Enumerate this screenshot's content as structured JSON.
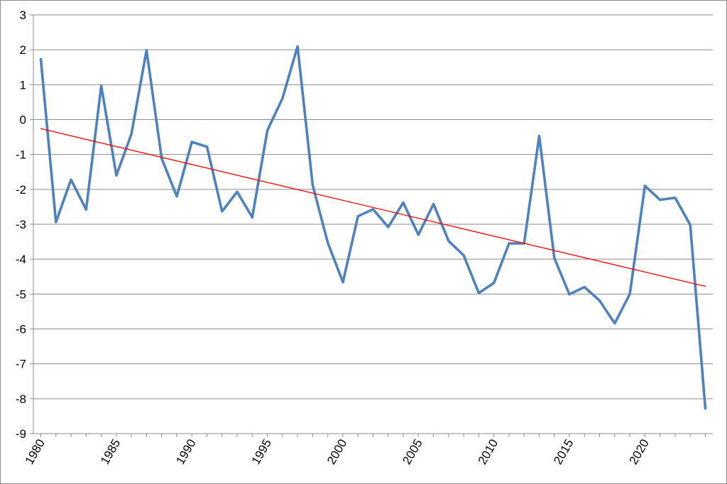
{
  "chart_data": {
    "type": "line",
    "title": "",
    "xlabel": "",
    "ylabel": "",
    "ylim": [
      -9,
      3
    ],
    "yticks": [
      3,
      2,
      1,
      0,
      -1,
      -2,
      -3,
      -4,
      -5,
      -6,
      -7,
      -8,
      -9
    ],
    "xlim": [
      1980,
      2024
    ],
    "xticks": [
      1980,
      1985,
      1990,
      1995,
      2000,
      2005,
      2010,
      2015,
      2020
    ],
    "grid": "horizontal",
    "legend": "none",
    "series": [
      {
        "color": "#4f81bd",
        "x": [
          1980,
          1981,
          1982,
          1983,
          1984,
          1985,
          1986,
          1987,
          1988,
          1989,
          1990,
          1991,
          1992,
          1993,
          1994,
          1995,
          1996,
          1997,
          1998,
          1999,
          2000,
          2001,
          2002,
          2003,
          2004,
          2005,
          2006,
          2007,
          2008,
          2009,
          2010,
          2011,
          2012,
          2013,
          2014,
          2015,
          2016,
          2017,
          2018,
          2019,
          2020,
          2021,
          2022,
          2023,
          2024
        ],
        "values": [
          1.73,
          -2.94,
          -1.72,
          -2.58,
          0.97,
          -1.6,
          -0.41,
          1.99,
          -1.11,
          -2.2,
          -0.64,
          -0.78,
          -2.63,
          -2.07,
          -2.8,
          -0.31,
          0.61,
          2.1,
          -1.88,
          -3.53,
          -4.66,
          -2.77,
          -2.57,
          -3.08,
          -2.38,
          -3.3,
          -2.42,
          -3.48,
          -3.89,
          -4.97,
          -4.68,
          -3.55,
          -3.55,
          -0.47,
          -3.97,
          -5.01,
          -4.8,
          -5.19,
          -5.84,
          -5.0,
          -1.9,
          -2.3,
          -2.24,
          -3.02,
          -8.28
        ]
      },
      {
        "color": "#ff0000",
        "type": "trendline",
        "x": [
          1980,
          2024
        ],
        "values": [
          -0.26,
          -4.78
        ]
      }
    ]
  }
}
